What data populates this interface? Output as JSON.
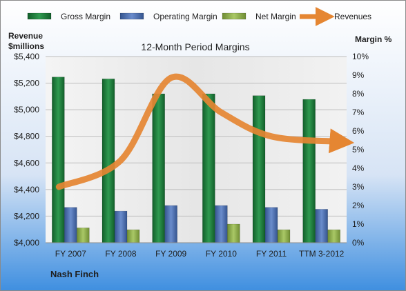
{
  "chart_data": {
    "type": "bar",
    "title": "12-Month Period Margins",
    "company_label": "Nash Finch",
    "ylabel_left": [
      "Revenue",
      "$millions"
    ],
    "ylabel_right": "Margin %",
    "categories": [
      "FY 2007",
      "FY 2008",
      "FY 2009",
      "FY 2010",
      "FY 2011",
      "TTM 3-2012"
    ],
    "y_left": {
      "min": 4000,
      "max": 5400,
      "step": 200,
      "tick_labels": [
        "$4,000",
        "$4,200",
        "$4,400",
        "$4,600",
        "$4,800",
        "$5,000",
        "$5,200",
        "$5,400"
      ]
    },
    "y_right": {
      "min": 0,
      "max": 10,
      "step": 1,
      "tick_labels": [
        "0%",
        "1%",
        "2%",
        "3%",
        "4%",
        "5%",
        "6%",
        "7%",
        "8%",
        "9%",
        "10%"
      ]
    },
    "grid": true,
    "legend_position": "top",
    "series": [
      {
        "name": "Gross Margin",
        "axis": "right",
        "kind": "bar",
        "color": "#1e7b3a",
        "values": [
          8.9,
          8.8,
          8.0,
          8.0,
          7.9,
          7.7
        ]
      },
      {
        "name": "Operating Margin",
        "axis": "right",
        "kind": "bar",
        "color": "#4f72b8",
        "values": [
          1.9,
          1.7,
          2.0,
          2.0,
          1.9,
          1.8
        ]
      },
      {
        "name": "Net Margin",
        "axis": "right",
        "kind": "bar",
        "color": "#8fb04a",
        "values": [
          0.8,
          0.7,
          0.0,
          1.0,
          0.7,
          0.7
        ]
      },
      {
        "name": "Revenues",
        "axis": "left",
        "kind": "line",
        "color": "#e58632",
        "values": [
          4420,
          4620,
          5240,
          4980,
          4800,
          4760
        ]
      }
    ]
  }
}
